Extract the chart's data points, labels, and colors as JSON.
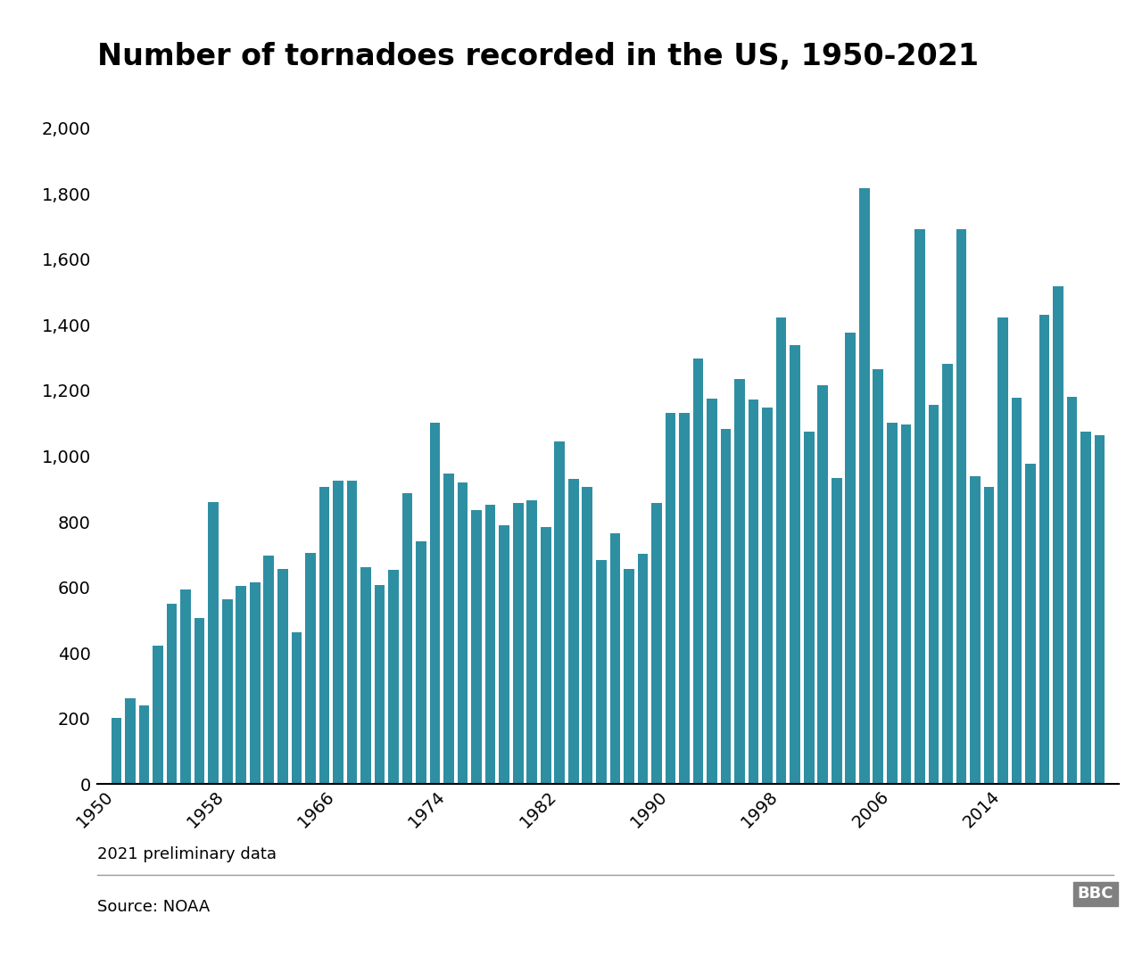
{
  "title": "Number of tornadoes recorded in the US, 1950-2021",
  "bar_color": "#2e8fa3",
  "background_color": "#ffffff",
  "years": [
    1950,
    1951,
    1952,
    1953,
    1954,
    1955,
    1956,
    1957,
    1958,
    1959,
    1960,
    1961,
    1962,
    1963,
    1964,
    1965,
    1966,
    1967,
    1968,
    1969,
    1970,
    1971,
    1972,
    1973,
    1974,
    1975,
    1976,
    1977,
    1978,
    1979,
    1980,
    1981,
    1982,
    1983,
    1984,
    1985,
    1986,
    1987,
    1988,
    1989,
    1990,
    1991,
    1992,
    1993,
    1994,
    1995,
    1996,
    1997,
    1998,
    1999,
    2000,
    2001,
    2002,
    2003,
    2004,
    2005,
    2006,
    2007,
    2008,
    2009,
    2010,
    2011,
    2012,
    2013,
    2014,
    2015,
    2016,
    2017,
    2018,
    2019,
    2020,
    2021
  ],
  "values": [
    201,
    261,
    240,
    422,
    550,
    593,
    505,
    859,
    564,
    604,
    616,
    697,
    657,
    463,
    704,
    906,
    926,
    926,
    660,
    608,
    653,
    888,
    741,
    1102,
    947,
    920,
    835,
    852,
    789,
    857,
    866,
    783,
    1046,
    931,
    907,
    684,
    765,
    656,
    702,
    856,
    1133,
    1132,
    1298,
    1176,
    1082,
    1235,
    1173,
    1148,
    1424,
    1340,
    1075,
    1215,
    934,
    1376,
    1817,
    1265,
    1103,
    1096,
    1692,
    1156,
    1282,
    1692,
    938,
    907,
    1424,
    1177,
    976,
    1430,
    1517,
    1182,
    1075,
    1065
  ],
  "yticks": [
    0,
    200,
    400,
    600,
    800,
    1000,
    1200,
    1400,
    1600,
    1800,
    2000
  ],
  "xticks": [
    1950,
    1958,
    1966,
    1974,
    1982,
    1990,
    1998,
    2006,
    2014
  ],
  "ylim": [
    0,
    2100
  ],
  "xlim": [
    1948.6,
    2022.4
  ],
  "footnote": "2021 preliminary data",
  "source": "Source: NOAA",
  "bbc_label": "BBC",
  "title_fontsize": 24,
  "tick_fontsize": 14,
  "bar_width": 0.75
}
